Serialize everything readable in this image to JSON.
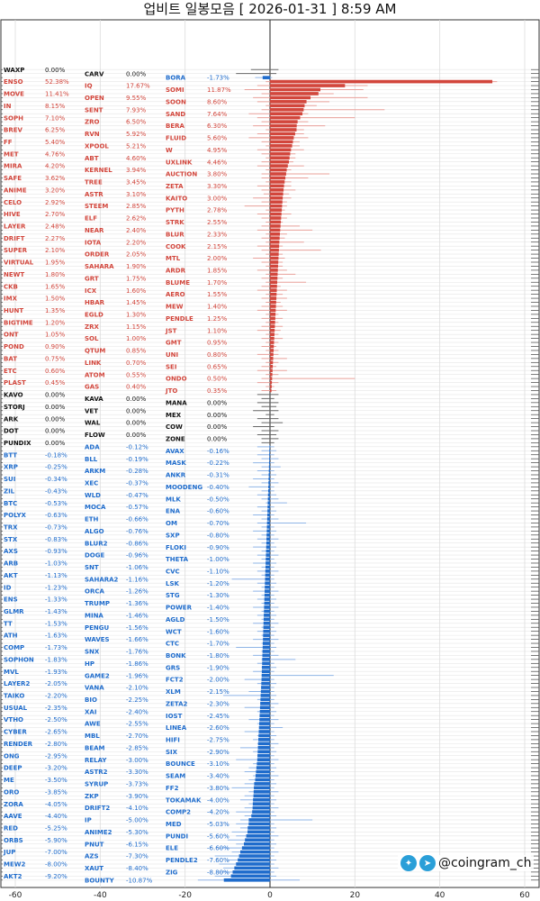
{
  "title": "업비트 일봉모음 [ 2026-01-31 ]  8:59 AM",
  "watermark": {
    "handle": "@coingram_ch",
    "icons": [
      "twitter-icon",
      "telegram-icon"
    ]
  },
  "colors": {
    "up": "#d2463c",
    "up_range": "#e8a09a",
    "down": "#1f6ccc",
    "down_range": "#8fb4e6",
    "flat": "#111111",
    "flat_range": "#666666"
  },
  "chart_data": {
    "type": "bar",
    "orientation": "horizontal",
    "xlim": [
      -60,
      60
    ],
    "xticks": [
      -60,
      -40,
      -20,
      0,
      20,
      40,
      60
    ],
    "grid": true,
    "note_columns": [
      "name",
      "change_pct",
      "low_pct",
      "high_pct"
    ],
    "rows": [
      [
        "WAXP",
        0.0,
        -4.5,
        2.0
      ],
      [
        "CARV",
        0.0,
        -8.0,
        1.5
      ],
      [
        "BORA",
        -1.73,
        -3.5,
        0.5
      ],
      [
        "ENSO",
        52.38,
        -1.0,
        53.5
      ],
      [
        "IQ",
        17.67,
        -3.0,
        23.0
      ],
      [
        "SOMI",
        11.87,
        -6.0,
        22.0
      ],
      [
        "MOVE",
        11.41,
        -2.0,
        15.0
      ],
      [
        "OPEN",
        9.55,
        -4.0,
        23.0
      ],
      [
        "SOON",
        8.6,
        -3.0,
        14.0
      ],
      [
        "IN",
        8.15,
        -1.0,
        11.0
      ],
      [
        "SENT",
        7.93,
        -2.0,
        27.0
      ],
      [
        "SAND",
        7.64,
        -5.0,
        9.0
      ],
      [
        "SOPH",
        7.1,
        -3.0,
        20.0
      ],
      [
        "ZRO",
        6.5,
        -2.0,
        9.0
      ],
      [
        "BERA",
        6.3,
        -4.0,
        13.0
      ],
      [
        "BREV",
        6.25,
        -1.0,
        8.0
      ],
      [
        "RVN",
        5.92,
        -3.0,
        8.0
      ],
      [
        "FLUID",
        5.6,
        -5.0,
        9.0
      ],
      [
        "FF",
        5.4,
        -2.0,
        7.0
      ],
      [
        "XPOOL",
        5.21,
        -1.0,
        7.0
      ],
      [
        "W",
        4.95,
        -3.0,
        8.0
      ],
      [
        "MET",
        4.76,
        -2.0,
        6.0
      ],
      [
        "ABT",
        4.6,
        -1.0,
        6.0
      ],
      [
        "UXLINK",
        4.46,
        -2.0,
        5.5
      ],
      [
        "MIRA",
        4.2,
        -3.0,
        8.0
      ],
      [
        "KERNEL",
        3.94,
        -1.0,
        5.0
      ],
      [
        "AUCTION",
        3.8,
        -2.0,
        14.0
      ],
      [
        "SAFE",
        3.62,
        -2.0,
        9.0
      ],
      [
        "TREE",
        3.45,
        -1.0,
        5.0
      ],
      [
        "ZETA",
        3.3,
        -3.0,
        5.0
      ],
      [
        "ANIME",
        3.2,
        -2.0,
        6.0
      ],
      [
        "ASTR",
        3.1,
        -1.5,
        4.5
      ],
      [
        "KAITO",
        3.0,
        -4.0,
        5.0
      ],
      [
        "CELO",
        2.92,
        -2.0,
        4.0
      ],
      [
        "STEEM",
        2.85,
        -6.0,
        4.0
      ],
      [
        "PYTH",
        2.78,
        -1.0,
        3.5
      ],
      [
        "HIVE",
        2.7,
        -3.0,
        5.0
      ],
      [
        "ELF",
        2.62,
        -2.0,
        4.0
      ],
      [
        "STRK",
        2.55,
        -1.0,
        3.0
      ],
      [
        "LAYER",
        2.48,
        -2.0,
        7.0
      ],
      [
        "NEAR",
        2.4,
        -3.0,
        10.0
      ],
      [
        "BLUR",
        2.33,
        -1.0,
        4.0
      ],
      [
        "DRIFT",
        2.27,
        -2.0,
        3.5
      ],
      [
        "IOTA",
        2.2,
        -1.0,
        8.0
      ],
      [
        "COOK",
        2.15,
        -3.0,
        3.0
      ],
      [
        "SUPER",
        2.1,
        -2.0,
        12.0
      ],
      [
        "ORDER",
        2.05,
        -1.0,
        3.0
      ],
      [
        "MTL",
        2.0,
        -4.0,
        3.5
      ],
      [
        "VIRTUAL",
        1.95,
        -2.0,
        3.0
      ],
      [
        "SAHARA",
        1.9,
        -1.0,
        3.0
      ],
      [
        "ARDR",
        1.85,
        -3.0,
        4.0
      ],
      [
        "NEWT",
        1.8,
        -1.0,
        6.0
      ],
      [
        "GRT",
        1.75,
        -2.0,
        3.0
      ],
      [
        "BLUME",
        1.7,
        -1.0,
        8.5
      ],
      [
        "CKB",
        1.65,
        -2.0,
        2.5
      ],
      [
        "ICX",
        1.6,
        -3.0,
        4.0
      ],
      [
        "AERO",
        1.55,
        -1.0,
        3.0
      ],
      [
        "IMX",
        1.5,
        -2.0,
        4.0
      ],
      [
        "HBAR",
        1.45,
        -1.0,
        2.5
      ],
      [
        "MEW",
        1.4,
        -2.0,
        3.0
      ],
      [
        "HUNT",
        1.35,
        -3.0,
        4.0
      ],
      [
        "EGLD",
        1.3,
        -1.0,
        2.0
      ],
      [
        "PENDLE",
        1.25,
        -2.0,
        3.0
      ],
      [
        "BIGTIME",
        1.2,
        -1.0,
        2.0
      ],
      [
        "ZRX",
        1.15,
        -2.0,
        3.0
      ],
      [
        "JST",
        1.1,
        -3.0,
        2.5
      ],
      [
        "ONT",
        1.05,
        -1.0,
        2.0
      ],
      [
        "SOL",
        1.0,
        -2.0,
        3.0
      ],
      [
        "GMT",
        0.95,
        -1.0,
        2.0
      ],
      [
        "POND",
        0.9,
        -2.0,
        1.5
      ],
      [
        "QTUM",
        0.85,
        -1.0,
        2.0
      ],
      [
        "UNI",
        0.8,
        -3.0,
        2.0
      ],
      [
        "BAT",
        0.75,
        -2.0,
        4.0
      ],
      [
        "LINK",
        0.7,
        -1.0,
        2.0
      ],
      [
        "SEI",
        0.65,
        -2.0,
        1.5
      ],
      [
        "ETC",
        0.6,
        -3.0,
        4.0
      ],
      [
        "ATOM",
        0.55,
        -1.0,
        2.0
      ],
      [
        "ONDO",
        0.5,
        -2.0,
        20.0
      ],
      [
        "PLAST",
        0.45,
        -3.0,
        2.0
      ],
      [
        "GAS",
        0.4,
        -1.0,
        1.0
      ],
      [
        "JTO",
        0.35,
        -2.0,
        1.5
      ],
      [
        "KAVO",
        0.0,
        -3.0,
        2.0
      ],
      [
        "KAVA",
        0.0,
        -2.0,
        1.0
      ],
      [
        "MANA",
        0.0,
        -3.0,
        2.0
      ],
      [
        "STORJ",
        0.0,
        -2.0,
        1.5
      ],
      [
        "VET",
        0.0,
        -4.0,
        2.0
      ],
      [
        "MEX",
        0.0,
        -1.0,
        1.0
      ],
      [
        "ARK",
        0.0,
        -3.0,
        2.0
      ],
      [
        "WAL",
        0.0,
        -2.0,
        3.0
      ],
      [
        "COW",
        0.0,
        -4.0,
        1.0
      ],
      [
        "DOT",
        0.0,
        -2.0,
        2.0
      ],
      [
        "FLOW",
        0.0,
        -3.0,
        1.5
      ],
      [
        "ZONE",
        0.0,
        -2.0,
        2.0
      ],
      [
        "PUNDIX",
        0.0,
        -2.0,
        1.0
      ],
      [
        "ADA",
        -0.12,
        -3.0,
        1.0
      ],
      [
        "AVAX",
        -0.16,
        -2.0,
        1.5
      ],
      [
        "BTT",
        -0.18,
        -3.0,
        1.0
      ],
      [
        "BLL",
        -0.19,
        -2.0,
        2.0
      ],
      [
        "MASK",
        -0.22,
        -4.0,
        1.0
      ],
      [
        "XRP",
        -0.25,
        -2.0,
        2.5
      ],
      [
        "ARKM",
        -0.28,
        -3.0,
        1.0
      ],
      [
        "ANKR",
        -0.31,
        -2.0,
        1.5
      ],
      [
        "SUI",
        -0.34,
        -4.0,
        1.0
      ],
      [
        "XEC",
        -0.37,
        -2.0,
        2.0
      ],
      [
        "MOODENG",
        -0.4,
        -5.0,
        1.0
      ],
      [
        "ZIL",
        -0.43,
        -2.0,
        1.0
      ],
      [
        "WLD",
        -0.47,
        -3.0,
        1.5
      ],
      [
        "MLK",
        -0.5,
        -2.0,
        2.0
      ],
      [
        "BTC",
        -0.53,
        -1.0,
        4.0
      ],
      [
        "MOCA",
        -0.57,
        -3.0,
        1.0
      ],
      [
        "ENA",
        -0.6,
        -2.0,
        1.5
      ],
      [
        "POLYX",
        -0.63,
        -4.0,
        1.0
      ],
      [
        "ETH",
        -0.66,
        -2.0,
        2.0
      ],
      [
        "OM",
        -0.7,
        -3.0,
        8.5
      ],
      [
        "TRX",
        -0.73,
        -2.0,
        1.0
      ],
      [
        "ALGO",
        -0.76,
        -4.0,
        1.5
      ],
      [
        "SXP",
        -0.8,
        -2.0,
        1.0
      ],
      [
        "STX",
        -0.83,
        -3.0,
        2.0
      ],
      [
        "BLUR2",
        -0.86,
        -2.0,
        1.0
      ],
      [
        "FLOKI",
        -0.9,
        -4.0,
        1.5
      ],
      [
        "AXS",
        -0.93,
        -2.0,
        1.0
      ],
      [
        "DOGE",
        -0.96,
        -3.0,
        2.0
      ],
      [
        "THETA",
        -1.0,
        -2.0,
        1.0
      ],
      [
        "ARB",
        -1.03,
        -4.0,
        1.5
      ],
      [
        "SNT",
        -1.06,
        -2.0,
        1.0
      ],
      [
        "CVC",
        -1.1,
        -3.0,
        2.0
      ],
      [
        "AKT",
        -1.13,
        -2.0,
        1.0
      ],
      [
        "SAHARA2",
        -1.16,
        -9.0,
        1.0
      ],
      [
        "LSK",
        -1.2,
        -3.0,
        1.5
      ],
      [
        "ID",
        -1.23,
        -2.0,
        1.0
      ],
      [
        "ORCA",
        -1.26,
        -4.0,
        2.0
      ],
      [
        "STG",
        -1.3,
        -2.0,
        1.0
      ],
      [
        "ENS",
        -1.33,
        -3.0,
        1.5
      ],
      [
        "TRUMP",
        -1.36,
        -2.0,
        1.0
      ],
      [
        "POWER",
        -1.4,
        -4.0,
        2.0
      ],
      [
        "GLMR",
        -1.43,
        -2.0,
        1.0
      ],
      [
        "MINA",
        -1.46,
        -3.0,
        1.5
      ],
      [
        "AGLD",
        -1.5,
        -2.0,
        1.0
      ],
      [
        "TT",
        -1.53,
        -4.0,
        2.0
      ],
      [
        "PENGU",
        -1.56,
        -2.0,
        1.0
      ],
      [
        "WCT",
        -1.6,
        -3.0,
        1.5
      ],
      [
        "ATH",
        -1.63,
        -2.0,
        1.0
      ],
      [
        "WAVES",
        -1.66,
        -4.0,
        2.0
      ],
      [
        "CTC",
        -1.7,
        -2.0,
        1.0
      ],
      [
        "COMP",
        -1.73,
        -8.0,
        1.5
      ],
      [
        "SNX",
        -1.76,
        -2.0,
        1.0
      ],
      [
        "BONK",
        -1.8,
        -4.0,
        2.0
      ],
      [
        "SOPHON",
        -1.83,
        -2.0,
        6.0
      ],
      [
        "HP",
        -1.86,
        -3.0,
        1.0
      ],
      [
        "GRS",
        -1.9,
        -2.0,
        1.5
      ],
      [
        "MVL",
        -1.93,
        -4.0,
        1.0
      ],
      [
        "GAME2",
        -1.96,
        -2.0,
        15.0
      ],
      [
        "FCT2",
        -2.0,
        -6.0,
        1.0
      ],
      [
        "LAYER2",
        -2.05,
        -3.0,
        1.5
      ],
      [
        "VANA",
        -2.1,
        -2.0,
        1.0
      ],
      [
        "XLM",
        -2.15,
        -5.0,
        1.0
      ],
      [
        "TAIKO",
        -2.2,
        -11.0,
        1.5
      ],
      [
        "BIO",
        -2.25,
        -3.0,
        1.0
      ],
      [
        "ZETA2",
        -2.3,
        -2.0,
        2.0
      ],
      [
        "USUAL",
        -2.35,
        -6.0,
        1.0
      ],
      [
        "XAI",
        -2.4,
        -3.0,
        1.5
      ],
      [
        "IOST",
        -2.45,
        -2.0,
        1.0
      ],
      [
        "VTHO",
        -2.5,
        -5.0,
        2.0
      ],
      [
        "AWE",
        -2.55,
        -3.0,
        1.0
      ],
      [
        "LINEA",
        -2.6,
        -2.0,
        3.0
      ],
      [
        "CYBER",
        -2.65,
        -6.0,
        1.0
      ],
      [
        "MBL",
        -2.7,
        -3.0,
        1.5
      ],
      [
        "HIFI",
        -2.75,
        -4.0,
        1.0
      ],
      [
        "RENDER",
        -2.8,
        -3.0,
        2.0
      ],
      [
        "BEAM",
        -2.85,
        -7.0,
        1.0
      ],
      [
        "SIX",
        -2.9,
        -4.0,
        1.5
      ],
      [
        "ONG",
        -2.95,
        -3.0,
        1.0
      ],
      [
        "RELAY",
        -3.0,
        -8.0,
        2.0
      ],
      [
        "BOUNCE",
        -3.1,
        -4.0,
        1.0
      ],
      [
        "DEEP",
        -3.2,
        -5.0,
        1.5
      ],
      [
        "ASTR2",
        -3.3,
        -6.0,
        1.0
      ],
      [
        "SEAM",
        -3.4,
        -4.0,
        2.0
      ],
      [
        "ME",
        -3.5,
        -5.0,
        1.0
      ],
      [
        "SYRUP",
        -3.73,
        -6.0,
        1.5
      ],
      [
        "FF2",
        -3.8,
        -9.0,
        1.0
      ],
      [
        "ORO",
        -3.85,
        -5.0,
        2.0
      ],
      [
        "ZKP",
        -3.9,
        -6.0,
        1.0
      ],
      [
        "TOKAMAK",
        -4.0,
        -7.0,
        1.5
      ],
      [
        "ZORA",
        -4.05,
        -5.0,
        1.0
      ],
      [
        "DRIFT2",
        -4.1,
        -6.0,
        2.0
      ],
      [
        "COMP2",
        -4.2,
        -8.0,
        1.0
      ],
      [
        "AAVE",
        -4.4,
        -6.0,
        1.5
      ],
      [
        "IP",
        -5.0,
        -7.0,
        10.0
      ],
      [
        "MED",
        -5.03,
        -8.0,
        1.0
      ],
      [
        "RED",
        -5.25,
        -7.0,
        1.5
      ],
      [
        "ANIME2",
        -5.3,
        -9.0,
        1.0
      ],
      [
        "PUNDI",
        -5.6,
        -8.0,
        2.0
      ],
      [
        "ORBS",
        -5.9,
        -10.0,
        1.0
      ],
      [
        "PNUT",
        -6.15,
        -8.0,
        1.5
      ],
      [
        "ELE",
        -6.6,
        -12.0,
        1.0
      ],
      [
        "JUP",
        -7.0,
        -9.0,
        2.0
      ],
      [
        "AZS",
        -7.3,
        -13.0,
        1.0
      ],
      [
        "PENDLE2",
        -7.6,
        -10.0,
        1.5
      ],
      [
        "MEW2",
        -8.0,
        -12.0,
        1.0
      ],
      [
        "XAUT",
        -8.4,
        -11.0,
        2.0
      ],
      [
        "ZIG",
        -8.8,
        -12.0,
        1.0
      ],
      [
        "AKT2",
        -9.2,
        -13.0,
        1.5
      ],
      [
        "BOUNTY",
        -10.87,
        -17.0,
        7.0
      ]
    ]
  }
}
